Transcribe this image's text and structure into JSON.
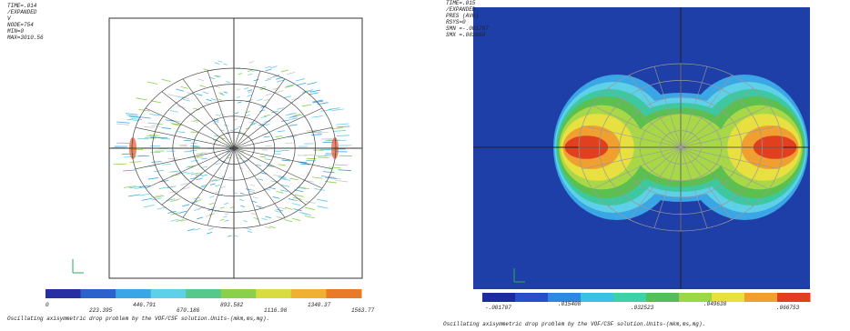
{
  "panels": [
    {
      "info": [
        "TIME=.014",
        "/EXPANDED",
        "V",
        "NODE=754",
        "MIN=0",
        "MAX=3010.56"
      ],
      "colorbar_labels": [
        "0",
        "223.395",
        "446.791",
        "670.186",
        "893.582",
        "1116.98",
        "1340.37",
        "1563.77"
      ],
      "caption": "Oscillating axisymmetric drop problem by the VOF/CSF solution.Units-(mkm,ms,mg)."
    },
    {
      "info": [
        "TIME=.015",
        "/EXPANDED",
        "PRES     (AVG)",
        "RSYS=0",
        "SMN =-.001707",
        "SMX =.083868"
      ],
      "colorbar_labels": [
        "-.001707",
        ".015408",
        ".032523",
        ".049638",
        ".066753"
      ],
      "caption": "Oscillating axisymmetric drop problem by the VOF/CSF solution.Units-(mkm,ms,mg)."
    }
  ]
}
